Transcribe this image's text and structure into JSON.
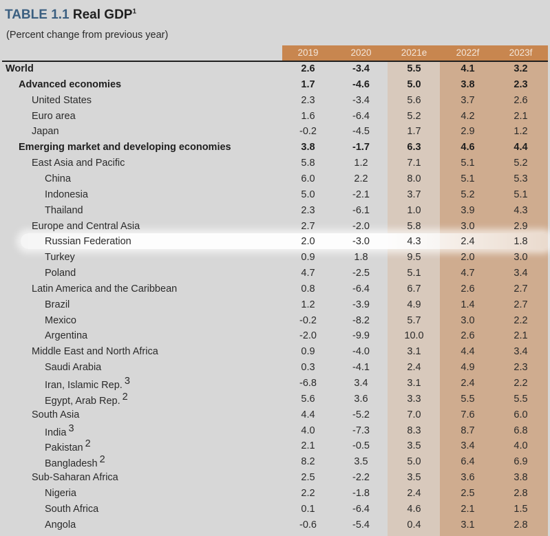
{
  "table": {
    "title_num": "TABLE 1.1",
    "title_text": "Real GDP",
    "title_sup": "1",
    "subtitle": "(Percent change from previous year)",
    "columns": [
      "2019",
      "2020",
      "2021e",
      "2022f",
      "2023f"
    ],
    "colors": {
      "header": "#c8864f",
      "estimate_shade": "#d8c9bc",
      "forecast_shade": "#cfac8f",
      "background": "#d7d7d7"
    },
    "highlighted_row": "Russian Federation",
    "rows": [
      {
        "label": "World",
        "level": 0,
        "bold": true,
        "note": "",
        "values": [
          "2.6",
          "-3.4",
          "5.5",
          "4.1",
          "3.2"
        ]
      },
      {
        "label": "Advanced economies",
        "level": 1,
        "bold": true,
        "note": "",
        "values": [
          "1.7",
          "-4.6",
          "5.0",
          "3.8",
          "2.3"
        ]
      },
      {
        "label": "United States",
        "level": 2,
        "bold": false,
        "note": "",
        "values": [
          "2.3",
          "-3.4",
          "5.6",
          "3.7",
          "2.6"
        ]
      },
      {
        "label": "Euro area",
        "level": 2,
        "bold": false,
        "note": "",
        "values": [
          "1.6",
          "-6.4",
          "5.2",
          "4.2",
          "2.1"
        ]
      },
      {
        "label": "Japan",
        "level": 2,
        "bold": false,
        "note": "",
        "values": [
          "-0.2",
          "-4.5",
          "1.7",
          "2.9",
          "1.2"
        ]
      },
      {
        "label": "Emerging market and developing economies",
        "level": 1,
        "bold": true,
        "note": "",
        "values": [
          "3.8",
          "-1.7",
          "6.3",
          "4.6",
          "4.4"
        ]
      },
      {
        "label": "East Asia and Pacific",
        "level": 2,
        "bold": false,
        "note": "",
        "values": [
          "5.8",
          "1.2",
          "7.1",
          "5.1",
          "5.2"
        ]
      },
      {
        "label": "China",
        "level": 3,
        "bold": false,
        "note": "",
        "values": [
          "6.0",
          "2.2",
          "8.0",
          "5.1",
          "5.3"
        ]
      },
      {
        "label": "Indonesia",
        "level": 3,
        "bold": false,
        "note": "",
        "values": [
          "5.0",
          "-2.1",
          "3.7",
          "5.2",
          "5.1"
        ]
      },
      {
        "label": "Thailand",
        "level": 3,
        "bold": false,
        "note": "",
        "values": [
          "2.3",
          "-6.1",
          "1.0",
          "3.9",
          "4.3"
        ]
      },
      {
        "label": "Europe and Central Asia",
        "level": 2,
        "bold": false,
        "note": "",
        "values": [
          "2.7",
          "-2.0",
          "5.8",
          "3.0",
          "2.9"
        ]
      },
      {
        "label": "Russian Federation",
        "level": 3,
        "bold": false,
        "note": "",
        "values": [
          "2.0",
          "-3.0",
          "4.3",
          "2.4",
          "1.8"
        ]
      },
      {
        "label": "Turkey",
        "level": 3,
        "bold": false,
        "note": "",
        "values": [
          "0.9",
          "1.8",
          "9.5",
          "2.0",
          "3.0"
        ]
      },
      {
        "label": "Poland",
        "level": 3,
        "bold": false,
        "note": "",
        "values": [
          "4.7",
          "-2.5",
          "5.1",
          "4.7",
          "3.4"
        ]
      },
      {
        "label": "Latin America and the Caribbean",
        "level": 2,
        "bold": false,
        "note": "",
        "values": [
          "0.8",
          "-6.4",
          "6.7",
          "2.6",
          "2.7"
        ]
      },
      {
        "label": "Brazil",
        "level": 3,
        "bold": false,
        "note": "",
        "values": [
          "1.2",
          "-3.9",
          "4.9",
          "1.4",
          "2.7"
        ]
      },
      {
        "label": "Mexico",
        "level": 3,
        "bold": false,
        "note": "",
        "values": [
          "-0.2",
          "-8.2",
          "5.7",
          "3.0",
          "2.2"
        ]
      },
      {
        "label": "Argentina",
        "level": 3,
        "bold": false,
        "note": "",
        "values": [
          "-2.0",
          "-9.9",
          "10.0",
          "2.6",
          "2.1"
        ]
      },
      {
        "label": "Middle East and North Africa",
        "level": 2,
        "bold": false,
        "note": "",
        "values": [
          "0.9",
          "-4.0",
          "3.1",
          "4.4",
          "3.4"
        ]
      },
      {
        "label": "Saudi Arabia",
        "level": 3,
        "bold": false,
        "note": "",
        "values": [
          "0.3",
          "-4.1",
          "2.4",
          "4.9",
          "2.3"
        ]
      },
      {
        "label": "Iran, Islamic Rep.",
        "level": 3,
        "bold": false,
        "note": "3",
        "values": [
          "-6.8",
          "3.4",
          "3.1",
          "2.4",
          "2.2"
        ]
      },
      {
        "label": "Egypt, Arab Rep.",
        "level": 3,
        "bold": false,
        "note": "2",
        "values": [
          "5.6",
          "3.6",
          "3.3",
          "5.5",
          "5.5"
        ]
      },
      {
        "label": "South Asia",
        "level": 2,
        "bold": false,
        "note": "",
        "values": [
          "4.4",
          "-5.2",
          "7.0",
          "7.6",
          "6.0"
        ]
      },
      {
        "label": "India",
        "level": 3,
        "bold": false,
        "note": "3",
        "values": [
          "4.0",
          "-7.3",
          "8.3",
          "8.7",
          "6.8"
        ]
      },
      {
        "label": "Pakistan",
        "level": 3,
        "bold": false,
        "note": "2",
        "values": [
          "2.1",
          "-0.5",
          "3.5",
          "3.4",
          "4.0"
        ]
      },
      {
        "label": "Bangladesh",
        "level": 3,
        "bold": false,
        "note": "2",
        "values": [
          "8.2",
          "3.5",
          "5.0",
          "6.4",
          "6.9"
        ]
      },
      {
        "label": "Sub-Saharan Africa",
        "level": 2,
        "bold": false,
        "note": "",
        "values": [
          "2.5",
          "-2.2",
          "3.5",
          "3.6",
          "3.8"
        ]
      },
      {
        "label": "Nigeria",
        "level": 3,
        "bold": false,
        "note": "",
        "values": [
          "2.2",
          "-1.8",
          "2.4",
          "2.5",
          "2.8"
        ]
      },
      {
        "label": "South Africa",
        "level": 3,
        "bold": false,
        "note": "",
        "values": [
          "0.1",
          "-6.4",
          "4.6",
          "2.1",
          "1.5"
        ]
      },
      {
        "label": "Angola",
        "level": 3,
        "bold": false,
        "note": "",
        "values": [
          "-0.6",
          "-5.4",
          "0.4",
          "3.1",
          "2.8"
        ]
      }
    ]
  }
}
